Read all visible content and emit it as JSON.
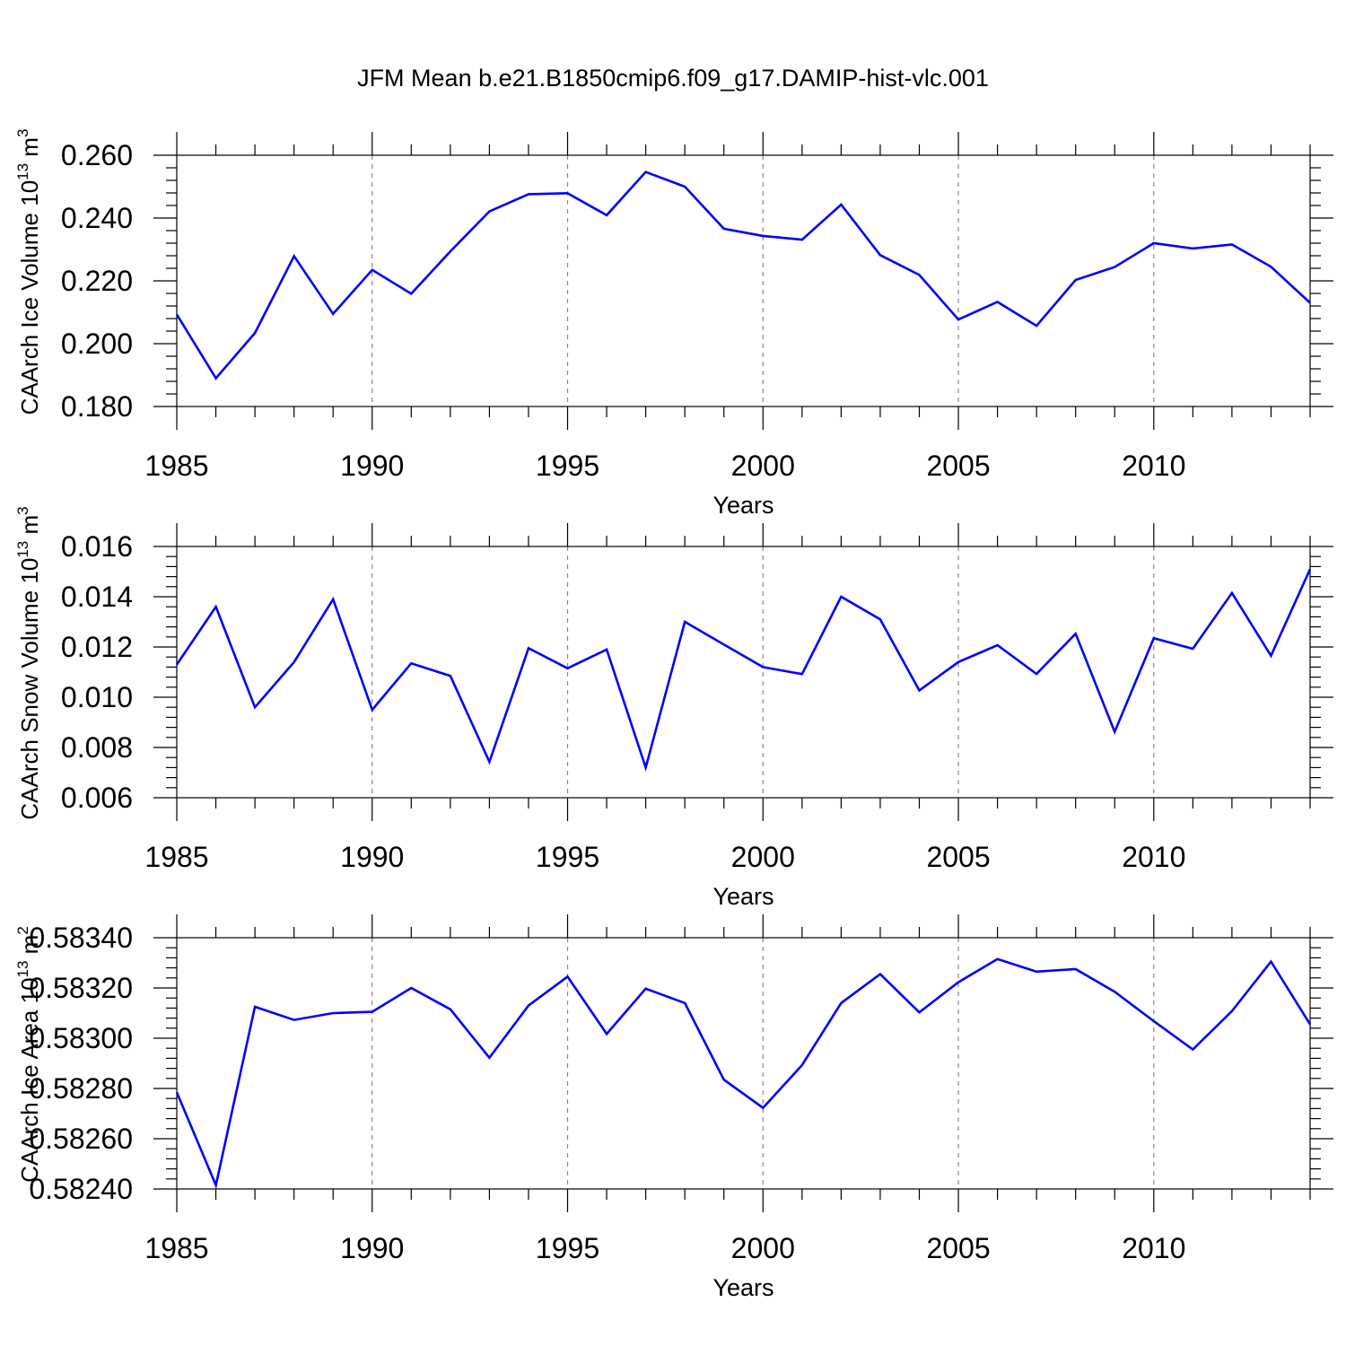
{
  "title": "JFM Mean b.e21.B1850cmip6.f09_g17.DAMIP-hist-vlc.001",
  "colors": {
    "line": "#0000ff",
    "axis": "#000000",
    "grid": "#888888"
  },
  "chart_data": [
    {
      "type": "line",
      "ylabel": "CAArch Ice Volume 10",
      "ylabel_sup": "13",
      "ylabel_unit": "m",
      "ylabel_unit_sup": "3",
      "xlabel": "Years",
      "xlim": [
        1985,
        2014
      ],
      "ylim": [
        0.18,
        0.26
      ],
      "xticks": [
        "1985",
        "1990",
        "1995",
        "2000",
        "2005",
        "2010"
      ],
      "yticks": [
        "0.180",
        "0.200",
        "0.220",
        "0.240",
        "0.260"
      ],
      "x": [
        1985,
        1986,
        1987,
        1988,
        1989,
        1990,
        1991,
        1992,
        1993,
        1994,
        1995,
        1996,
        1997,
        1998,
        1999,
        2000,
        2001,
        2002,
        2003,
        2004,
        2005,
        2006,
        2007,
        2008,
        2009,
        2010,
        2011,
        2012,
        2013,
        2014
      ],
      "series": [
        {
          "name": "CAArch Ice Volume",
          "values": [
            0.2093,
            0.189,
            0.2034,
            0.2279,
            0.2095,
            0.2235,
            0.2159,
            0.2294,
            0.2421,
            0.2476,
            0.2479,
            0.2409,
            0.2547,
            0.25,
            0.2366,
            0.2343,
            0.2331,
            0.2443,
            0.2282,
            0.2219,
            0.2077,
            0.2133,
            0.2057,
            0.2203,
            0.2244,
            0.232,
            0.2303,
            0.2316,
            0.2245,
            0.213
          ]
        }
      ]
    },
    {
      "type": "line",
      "ylabel": "CAArch Snow Volume 10",
      "ylabel_sup": "13",
      "ylabel_unit": "m",
      "ylabel_unit_sup": "3",
      "xlabel": "Years",
      "xlim": [
        1985,
        2014
      ],
      "ylim": [
        0.006,
        0.016
      ],
      "xticks": [
        "1985",
        "1990",
        "1995",
        "2000",
        "2005",
        "2010"
      ],
      "yticks": [
        "0.006",
        "0.008",
        "0.010",
        "0.012",
        "0.014",
        "0.016"
      ],
      "x": [
        1985,
        1986,
        1987,
        1988,
        1989,
        1990,
        1991,
        1992,
        1993,
        1994,
        1995,
        1996,
        1997,
        1998,
        1999,
        2000,
        2001,
        2002,
        2003,
        2004,
        2005,
        2006,
        2007,
        2008,
        2009,
        2010,
        2011,
        2012,
        2013,
        2014
      ],
      "series": [
        {
          "name": "CAArch Snow Volume",
          "values": [
            0.0113,
            0.0136,
            0.0096,
            0.0114,
            0.0139,
            0.0095,
            0.01135,
            0.01085,
            0.00743,
            0.01195,
            0.01115,
            0.0119,
            0.0072,
            0.013,
            0.0121,
            0.0112,
            0.01092,
            0.014,
            0.0131,
            0.01027,
            0.0114,
            0.01207,
            0.01093,
            0.01253,
            0.00862,
            0.01235,
            0.01193,
            0.01415,
            0.01165,
            0.0151
          ]
        }
      ]
    },
    {
      "type": "line",
      "ylabel": "CAArch Ice Area 10",
      "ylabel_sup": "13",
      "ylabel_unit": "m",
      "ylabel_unit_sup": "2",
      "xlabel": "Years",
      "xlim": [
        1985,
        2014
      ],
      "ylim": [
        0.5824,
        0.5834
      ],
      "xticks": [
        "1985",
        "1990",
        "1995",
        "2000",
        "2005",
        "2010"
      ],
      "yticks": [
        "0.58240",
        "0.58260",
        "0.58280",
        "0.58300",
        "0.58320",
        "0.58340"
      ],
      "x": [
        1985,
        1986,
        1987,
        1988,
        1989,
        1990,
        1991,
        1992,
        1993,
        1994,
        1995,
        1996,
        1997,
        1998,
        1999,
        2000,
        2001,
        2002,
        2003,
        2004,
        2005,
        2006,
        2007,
        2008,
        2009,
        2010,
        2011,
        2012,
        2013,
        2014
      ],
      "series": [
        {
          "name": "CAArch Ice Area",
          "values": [
            0.582785,
            0.582415,
            0.583125,
            0.583073,
            0.5831,
            0.583105,
            0.5832,
            0.583115,
            0.582922,
            0.58313,
            0.583245,
            0.583017,
            0.583197,
            0.58314,
            0.582835,
            0.582723,
            0.582893,
            0.58314,
            0.583255,
            0.583103,
            0.583223,
            0.583315,
            0.583265,
            0.583275,
            0.583185,
            0.583068,
            0.582955,
            0.583108,
            0.583305,
            0.583055
          ]
        }
      ]
    }
  ]
}
